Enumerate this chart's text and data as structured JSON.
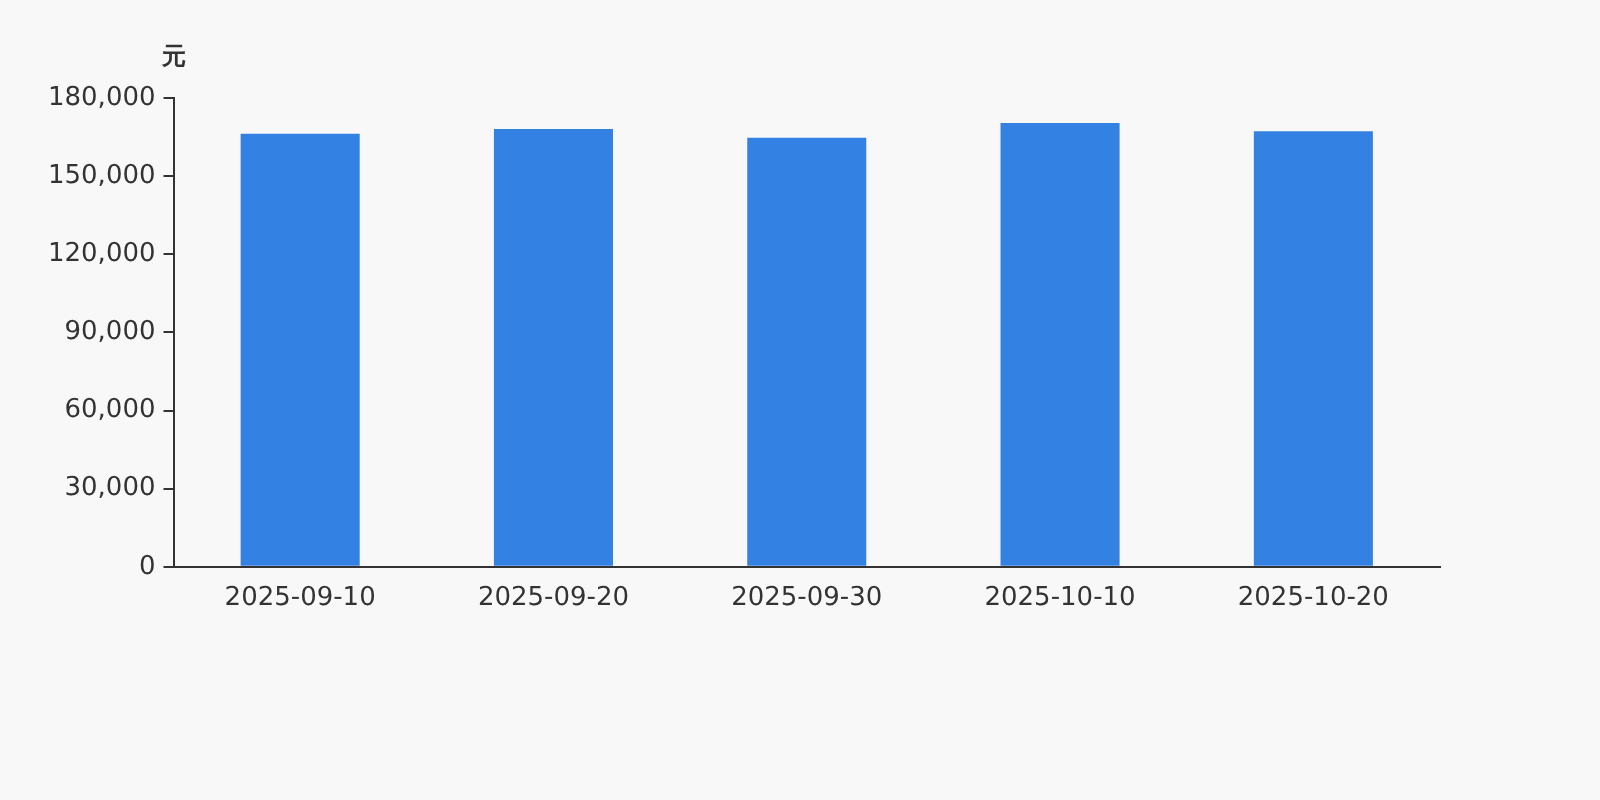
{
  "chart_data": {
    "type": "bar",
    "ylabel": "元",
    "categories": [
      "2025-09-10",
      "2025-09-20",
      "2025-09-30",
      "2025-10-10",
      "2025-10-20"
    ],
    "values": [
      166300,
      168100,
      164700,
      170400,
      167200
    ],
    "color": "#3381e3",
    "ylim": [
      0,
      180000
    ],
    "yticks": [
      0,
      {
        "value": 30000,
        "label": "30,000"
      },
      {
        "value": 60000,
        "label": "60,000"
      },
      {
        "value": 90000,
        "label": "90,000"
      },
      {
        "value": 120000,
        "label": "120,000"
      },
      {
        "value": 150000,
        "label": "150,000"
      },
      {
        "value": 180000,
        "label": "180,000"
      }
    ],
    "grid": false,
    "legend": false
  }
}
